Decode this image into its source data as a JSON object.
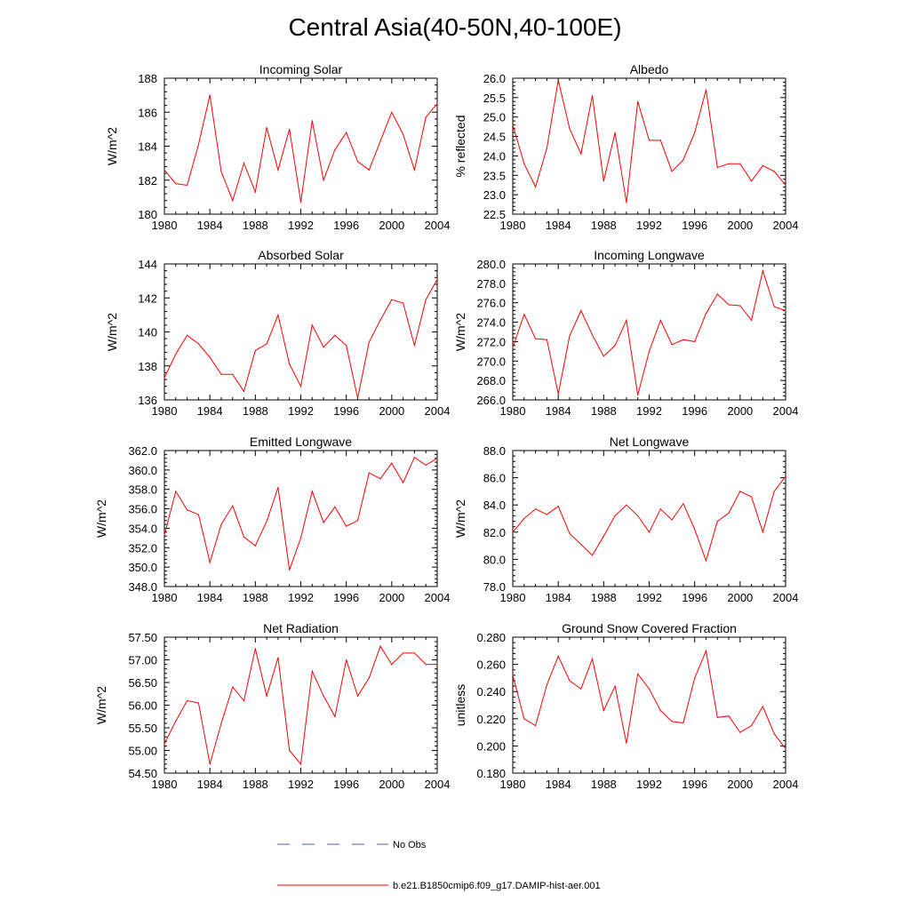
{
  "title": "Central Asia(40-50N,40-100E)",
  "legend": {
    "obs_label": "No Obs",
    "obs_color": "#4a5fc1",
    "model_label": "b.e21.B1850cmip6.f09_g17.DAMIP-hist-aer.001",
    "model_color": "#ff0000"
  },
  "chart_data": [
    {
      "type": "line",
      "title": "Incoming Solar",
      "ylabel": "W/m^2",
      "xlim": [
        1980,
        2004
      ],
      "ylim": [
        180,
        188
      ],
      "yticks": [
        "180",
        "182",
        "184",
        "186",
        "188"
      ],
      "xticks": [
        "1980",
        "1984",
        "1988",
        "1992",
        "1996",
        "2000",
        "2004"
      ],
      "x": [
        1980,
        1981,
        1982,
        1983,
        1984,
        1985,
        1986,
        1987,
        1988,
        1989,
        1990,
        1991,
        1992,
        1993,
        1994,
        1995,
        1996,
        1997,
        1998,
        1999,
        2000,
        2001,
        2002,
        2003,
        2004
      ],
      "values": [
        182.6,
        181.8,
        181.7,
        184.1,
        187.0,
        182.5,
        180.8,
        183.0,
        181.3,
        185.1,
        182.6,
        185.0,
        180.7,
        185.5,
        182.0,
        183.8,
        184.8,
        183.1,
        182.6,
        184.3,
        186.0,
        184.7,
        182.6,
        185.7,
        186.5
      ]
    },
    {
      "type": "line",
      "title": "Albedo",
      "ylabel": "% reflected",
      "xlim": [
        1980,
        2004
      ],
      "ylim": [
        22.5,
        26.0
      ],
      "yticks": [
        "22.5",
        "23.0",
        "23.5",
        "24.0",
        "24.5",
        "25.0",
        "25.5",
        "26.0"
      ],
      "xticks": [
        "1980",
        "1984",
        "1988",
        "1992",
        "1996",
        "2000",
        "2004"
      ],
      "x": [
        1980,
        1981,
        1982,
        1983,
        1984,
        1985,
        1986,
        1987,
        1988,
        1989,
        1990,
        1991,
        1992,
        1993,
        1994,
        1995,
        1996,
        1997,
        1998,
        1999,
        2000,
        2001,
        2002,
        2003,
        2004
      ],
      "values": [
        24.8,
        23.8,
        23.2,
        24.2,
        25.95,
        24.7,
        24.05,
        25.55,
        23.35,
        24.6,
        22.8,
        25.4,
        24.4,
        24.4,
        23.6,
        23.9,
        24.6,
        25.7,
        23.7,
        23.8,
        23.8,
        23.35,
        23.75,
        23.6,
        23.25
      ]
    },
    {
      "type": "line",
      "title": "Absorbed Solar",
      "ylabel": "W/m^2",
      "xlim": [
        1980,
        2004
      ],
      "ylim": [
        136,
        144
      ],
      "yticks": [
        "136",
        "138",
        "140",
        "142",
        "144"
      ],
      "xticks": [
        "1980",
        "1984",
        "1988",
        "1992",
        "1996",
        "2000",
        "2004"
      ],
      "x": [
        1980,
        1981,
        1982,
        1983,
        1984,
        1985,
        1986,
        1987,
        1988,
        1989,
        1990,
        1991,
        1992,
        1993,
        1994,
        1995,
        1996,
        1997,
        1998,
        1999,
        2000,
        2001,
        2002,
        2003,
        2004
      ],
      "values": [
        137.3,
        138.7,
        139.8,
        139.3,
        138.5,
        137.5,
        137.5,
        136.5,
        138.9,
        139.3,
        141.0,
        138.1,
        136.8,
        140.4,
        139.1,
        139.8,
        139.2,
        136.1,
        139.4,
        140.7,
        141.9,
        141.7,
        139.2,
        141.9,
        143.1
      ]
    },
    {
      "type": "line",
      "title": "Incoming Longwave",
      "ylabel": "W/m^2",
      "xlim": [
        1980,
        2004
      ],
      "ylim": [
        266,
        280
      ],
      "yticks": [
        "266.0",
        "268.0",
        "270.0",
        "272.0",
        "274.0",
        "276.0",
        "278.0",
        "280.0"
      ],
      "xticks": [
        "1980",
        "1984",
        "1988",
        "1992",
        "1996",
        "2000",
        "2004"
      ],
      "x": [
        1980,
        1981,
        1982,
        1983,
        1984,
        1985,
        1986,
        1987,
        1988,
        1989,
        1990,
        1991,
        1992,
        1993,
        1994,
        1995,
        1996,
        1997,
        1998,
        1999,
        2000,
        2001,
        2002,
        2003,
        2004
      ],
      "values": [
        271.4,
        274.8,
        272.3,
        272.2,
        266.6,
        272.6,
        275.2,
        272.7,
        270.5,
        271.6,
        274.2,
        266.5,
        271.0,
        274.2,
        271.7,
        272.2,
        272.0,
        274.9,
        276.9,
        275.8,
        275.7,
        274.2,
        279.3,
        275.6,
        275.2
      ]
    },
    {
      "type": "line",
      "title": "Emitted Longwave",
      "ylabel": "W/m^2",
      "xlim": [
        1980,
        2004
      ],
      "ylim": [
        348,
        362
      ],
      "yticks": [
        "348.0",
        "350.0",
        "352.0",
        "354.0",
        "356.0",
        "358.0",
        "360.0",
        "362.0"
      ],
      "xticks": [
        "1980",
        "1984",
        "1988",
        "1992",
        "1996",
        "2000",
        "2004"
      ],
      "x": [
        1980,
        1981,
        1982,
        1983,
        1984,
        1985,
        1986,
        1987,
        1988,
        1989,
        1990,
        1991,
        1992,
        1993,
        1994,
        1995,
        1996,
        1997,
        1998,
        1999,
        2000,
        2001,
        2002,
        2003,
        2004
      ],
      "values": [
        353.3,
        357.8,
        355.9,
        355.4,
        350.5,
        354.4,
        356.3,
        353.1,
        352.2,
        354.7,
        358.2,
        349.7,
        353.0,
        357.8,
        354.6,
        356.2,
        354.2,
        354.8,
        359.7,
        359.1,
        360.7,
        358.7,
        361.3,
        360.5,
        361.2
      ]
    },
    {
      "type": "line",
      "title": "Net Longwave",
      "ylabel": "W/m^2",
      "xlim": [
        1980,
        2004
      ],
      "ylim": [
        78,
        88
      ],
      "yticks": [
        "78.0",
        "80.0",
        "82.0",
        "84.0",
        "86.0",
        "88.0"
      ],
      "xticks": [
        "1980",
        "1984",
        "1988",
        "1992",
        "1996",
        "2000",
        "2004"
      ],
      "x": [
        1980,
        1981,
        1982,
        1983,
        1984,
        1985,
        1986,
        1987,
        1988,
        1989,
        1990,
        1991,
        1992,
        1993,
        1994,
        1995,
        1996,
        1997,
        1998,
        1999,
        2000,
        2001,
        2002,
        2003,
        2004
      ],
      "values": [
        82.0,
        83.0,
        83.7,
        83.3,
        83.9,
        81.9,
        81.1,
        80.3,
        81.7,
        83.2,
        84.0,
        83.2,
        82.0,
        83.7,
        82.9,
        84.1,
        82.2,
        79.9,
        82.8,
        83.4,
        85.0,
        84.6,
        82.0,
        85.0,
        86.1
      ]
    },
    {
      "type": "line",
      "title": "Net Radiation",
      "ylabel": "W/m^2",
      "xlim": [
        1980,
        2004
      ],
      "ylim": [
        54.5,
        57.5
      ],
      "yticks": [
        "54.50",
        "55.00",
        "55.50",
        "56.00",
        "56.50",
        "57.00",
        "57.50"
      ],
      "xticks": [
        "1980",
        "1984",
        "1988",
        "1992",
        "1996",
        "2000",
        "2004"
      ],
      "x": [
        1980,
        1981,
        1982,
        1983,
        1984,
        1985,
        1986,
        1987,
        1988,
        1989,
        1990,
        1991,
        1992,
        1993,
        1994,
        1995,
        1996,
        1997,
        1998,
        1999,
        2000,
        2001,
        2002,
        2003,
        2004
      ],
      "values": [
        55.15,
        55.65,
        56.1,
        56.05,
        54.7,
        55.6,
        56.4,
        56.1,
        57.25,
        56.2,
        57.05,
        55.0,
        54.7,
        56.75,
        56.2,
        55.75,
        57.0,
        56.2,
        56.6,
        57.3,
        56.9,
        57.15,
        57.15,
        56.9,
        56.9
      ]
    },
    {
      "type": "line",
      "title": "Ground Snow Covered Fraction",
      "ylabel": "unitless",
      "xlim": [
        1980,
        2004
      ],
      "ylim": [
        0.18,
        0.28
      ],
      "yticks": [
        "0.180",
        "0.200",
        "0.220",
        "0.240",
        "0.260",
        "0.280"
      ],
      "xticks": [
        "1980",
        "1984",
        "1988",
        "1992",
        "1996",
        "2000",
        "2004"
      ],
      "x": [
        1980,
        1981,
        1982,
        1983,
        1984,
        1985,
        1986,
        1987,
        1988,
        1989,
        1990,
        1991,
        1992,
        1993,
        1994,
        1995,
        1996,
        1997,
        1998,
        1999,
        2000,
        2001,
        2002,
        2003,
        2004
      ],
      "values": [
        0.252,
        0.22,
        0.215,
        0.245,
        0.266,
        0.248,
        0.242,
        0.264,
        0.226,
        0.244,
        0.202,
        0.253,
        0.242,
        0.226,
        0.218,
        0.217,
        0.25,
        0.27,
        0.221,
        0.222,
        0.21,
        0.215,
        0.229,
        0.209,
        0.198
      ]
    }
  ]
}
